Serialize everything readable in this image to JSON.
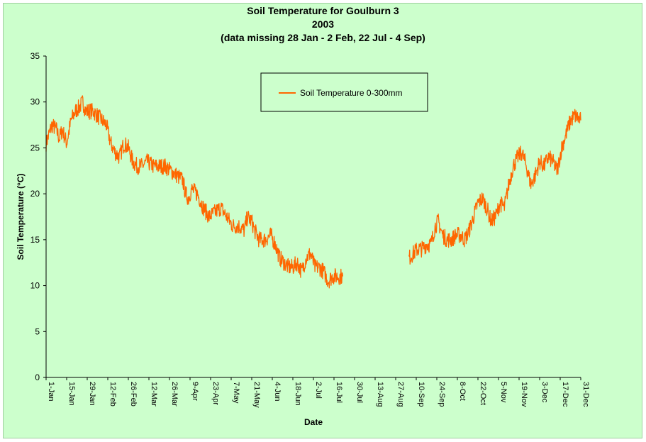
{
  "chart_data": {
    "type": "line",
    "title": "Soil Temperature for Goulburn 3",
    "subtitle": "2003",
    "note": "(data missing 28 Jan - 2 Feb, 22 Jul - 4 Sep)",
    "xlabel": "Date",
    "ylabel": "Soil Temperature (°C)",
    "ylim": [
      0,
      35
    ],
    "yticks": [
      0,
      5,
      10,
      15,
      20,
      25,
      30,
      35
    ],
    "xlim": [
      1,
      365
    ],
    "xticks": [
      {
        "day": 1,
        "label": "1-Jan"
      },
      {
        "day": 15,
        "label": "15-Jan"
      },
      {
        "day": 29,
        "label": "29-Jan"
      },
      {
        "day": 43,
        "label": "12-Feb"
      },
      {
        "day": 57,
        "label": "26-Feb"
      },
      {
        "day": 71,
        "label": "12-Mar"
      },
      {
        "day": 85,
        "label": "26-Mar"
      },
      {
        "day": 99,
        "label": "9-Apr"
      },
      {
        "day": 113,
        "label": "23-Apr"
      },
      {
        "day": 127,
        "label": "7-May"
      },
      {
        "day": 141,
        "label": "21-May"
      },
      {
        "day": 155,
        "label": "4-Jun"
      },
      {
        "day": 169,
        "label": "18-Jun"
      },
      {
        "day": 183,
        "label": "2-Jul"
      },
      {
        "day": 197,
        "label": "16-Jul"
      },
      {
        "day": 211,
        "label": "30-Jul"
      },
      {
        "day": 225,
        "label": "13-Aug"
      },
      {
        "day": 239,
        "label": "27-Aug"
      },
      {
        "day": 253,
        "label": "10-Sep"
      },
      {
        "day": 267,
        "label": "24-Sep"
      },
      {
        "day": 281,
        "label": "8-Oct"
      },
      {
        "day": 295,
        "label": "22-Oct"
      },
      {
        "day": 309,
        "label": "5-Nov"
      },
      {
        "day": 323,
        "label": "19-Nov"
      },
      {
        "day": 337,
        "label": "3-Dec"
      },
      {
        "day": 351,
        "label": "17-Dec"
      },
      {
        "day": 365,
        "label": "31-Dec"
      }
    ],
    "grid": false,
    "legend_position": "top-center",
    "series": [
      {
        "name": "Soil Temperature  0-300mm",
        "color": "#ff6600",
        "x": [
          1,
          3,
          5,
          8,
          10,
          12,
          15,
          18,
          21,
          24,
          26,
          28,
          33,
          36,
          39,
          42,
          45,
          48,
          51,
          54,
          57,
          60,
          63,
          66,
          70,
          74,
          78,
          82,
          86,
          90,
          94,
          96,
          98,
          100,
          104,
          108,
          112,
          116,
          120,
          124,
          128,
          132,
          136,
          138,
          141,
          143,
          146,
          150,
          154,
          157,
          160,
          163,
          166,
          169,
          172,
          175,
          178,
          181,
          184,
          187,
          190,
          193,
          196,
          200,
          203,
          248,
          251,
          254,
          257,
          260,
          263,
          266,
          268,
          271,
          274,
          277,
          280,
          283,
          286,
          289,
          292,
          295,
          298,
          301,
          304,
          307,
          310,
          313,
          316,
          319,
          322,
          325,
          328,
          331,
          334,
          337,
          340,
          343,
          346,
          349,
          352,
          355,
          358,
          361,
          365
        ],
        "y": [
          25.5,
          26.5,
          27.5,
          27.0,
          26.0,
          27.0,
          25.5,
          28.0,
          29.0,
          29.5,
          30.0,
          29.0,
          29.0,
          28.5,
          28.0,
          27.5,
          25.5,
          24.5,
          24.0,
          25.5,
          25.0,
          23.5,
          23.0,
          23.0,
          23.5,
          23.0,
          23.0,
          23.0,
          22.5,
          22.0,
          21.5,
          20.0,
          19.5,
          20.5,
          20.0,
          18.5,
          17.5,
          18.0,
          18.5,
          17.5,
          16.5,
          16.5,
          16.0,
          17.5,
          17.0,
          16.0,
          15.0,
          15.0,
          15.5,
          14.5,
          13.0,
          12.5,
          12.0,
          12.0,
          12.5,
          11.5,
          13.0,
          13.5,
          12.0,
          12.0,
          11.5,
          10.5,
          11.0,
          11.0,
          11.0,
          13.0,
          13.5,
          14.0,
          14.0,
          14.5,
          14.5,
          16.5,
          17.0,
          15.5,
          15.0,
          15.0,
          15.5,
          15.5,
          15.0,
          16.0,
          17.5,
          19.0,
          19.5,
          18.5,
          17.0,
          17.5,
          19.0,
          18.5,
          21.0,
          23.0,
          24.0,
          24.5,
          23.0,
          21.0,
          22.0,
          23.5,
          23.0,
          24.0,
          23.5,
          22.5,
          25.0,
          26.5,
          28.0,
          28.5,
          28.0
        ]
      }
    ]
  }
}
